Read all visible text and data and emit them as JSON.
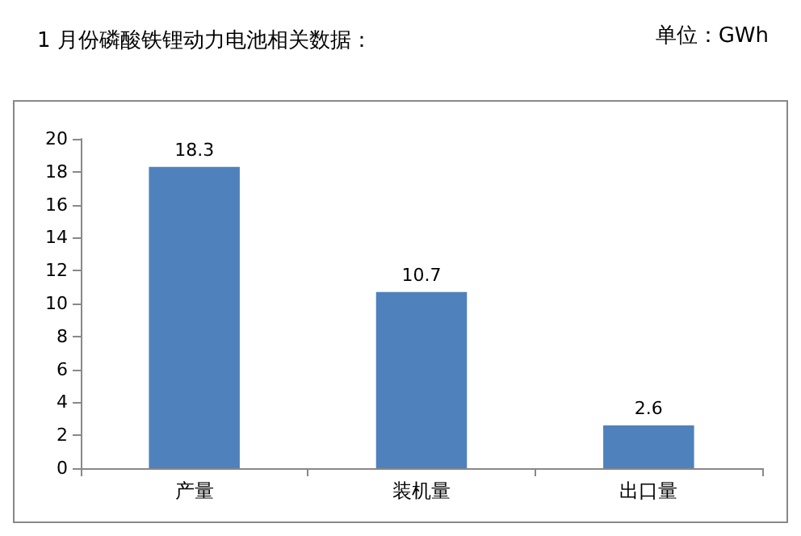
{
  "chart_data": {
    "type": "bar",
    "title": "1 月份磷酸铁锂动力电池相关数据：",
    "annotations": [
      "单位：GWh"
    ],
    "categories": [
      "产量",
      "装机量",
      "出口量"
    ],
    "values": [
      18.3,
      10.7,
      2.6
    ],
    "color": "#4f81bd",
    "ylim": [
      0,
      20
    ],
    "yticks": [
      0,
      2,
      4,
      6,
      8,
      10,
      12,
      14,
      16,
      18,
      20
    ],
    "data_labels": true
  }
}
